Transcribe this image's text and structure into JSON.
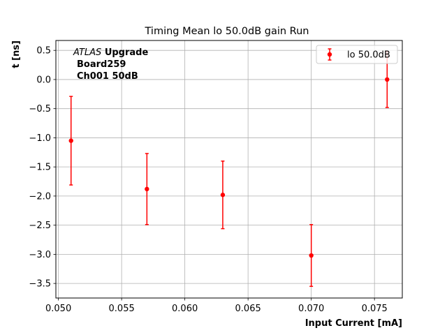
{
  "chart_data": {
    "type": "scatter",
    "title": "Timing Mean lo 50.0dB gain Run",
    "xlabel": "Input Current [mA]",
    "ylabel": "t [ns]",
    "xlim": [
      0.0498,
      0.0772
    ],
    "ylim": [
      -3.75,
      0.67
    ],
    "xticks": [
      0.05,
      0.055,
      0.06,
      0.065,
      0.07,
      0.075
    ],
    "xtick_labels": [
      "0.050",
      "0.055",
      "0.060",
      "0.065",
      "0.070",
      "0.075"
    ],
    "yticks": [
      0.5,
      0.0,
      -0.5,
      -1.0,
      -1.5,
      -2.0,
      -2.5,
      -3.0,
      -3.5
    ],
    "ytick_labels": [
      "0.5",
      "0.0",
      "−0.5",
      "−1.0",
      "−1.5",
      "−2.0",
      "−2.5",
      "−3.0",
      "−3.5"
    ],
    "grid": true,
    "legend_position": "top-right",
    "annotation": {
      "atlas": "ATLAS",
      "upgrade": "Upgrade",
      "board": "Board259",
      "channel": "Ch001 50dB"
    },
    "series": [
      {
        "name": "lo 50.0dB",
        "color": "#ff0000",
        "x": [
          0.051,
          0.057,
          0.063,
          0.07,
          0.076
        ],
        "y": [
          -1.05,
          -1.88,
          -1.98,
          -3.02,
          0.0
        ],
        "yerr": [
          0.76,
          0.61,
          0.58,
          0.53,
          0.48
        ]
      }
    ]
  }
}
